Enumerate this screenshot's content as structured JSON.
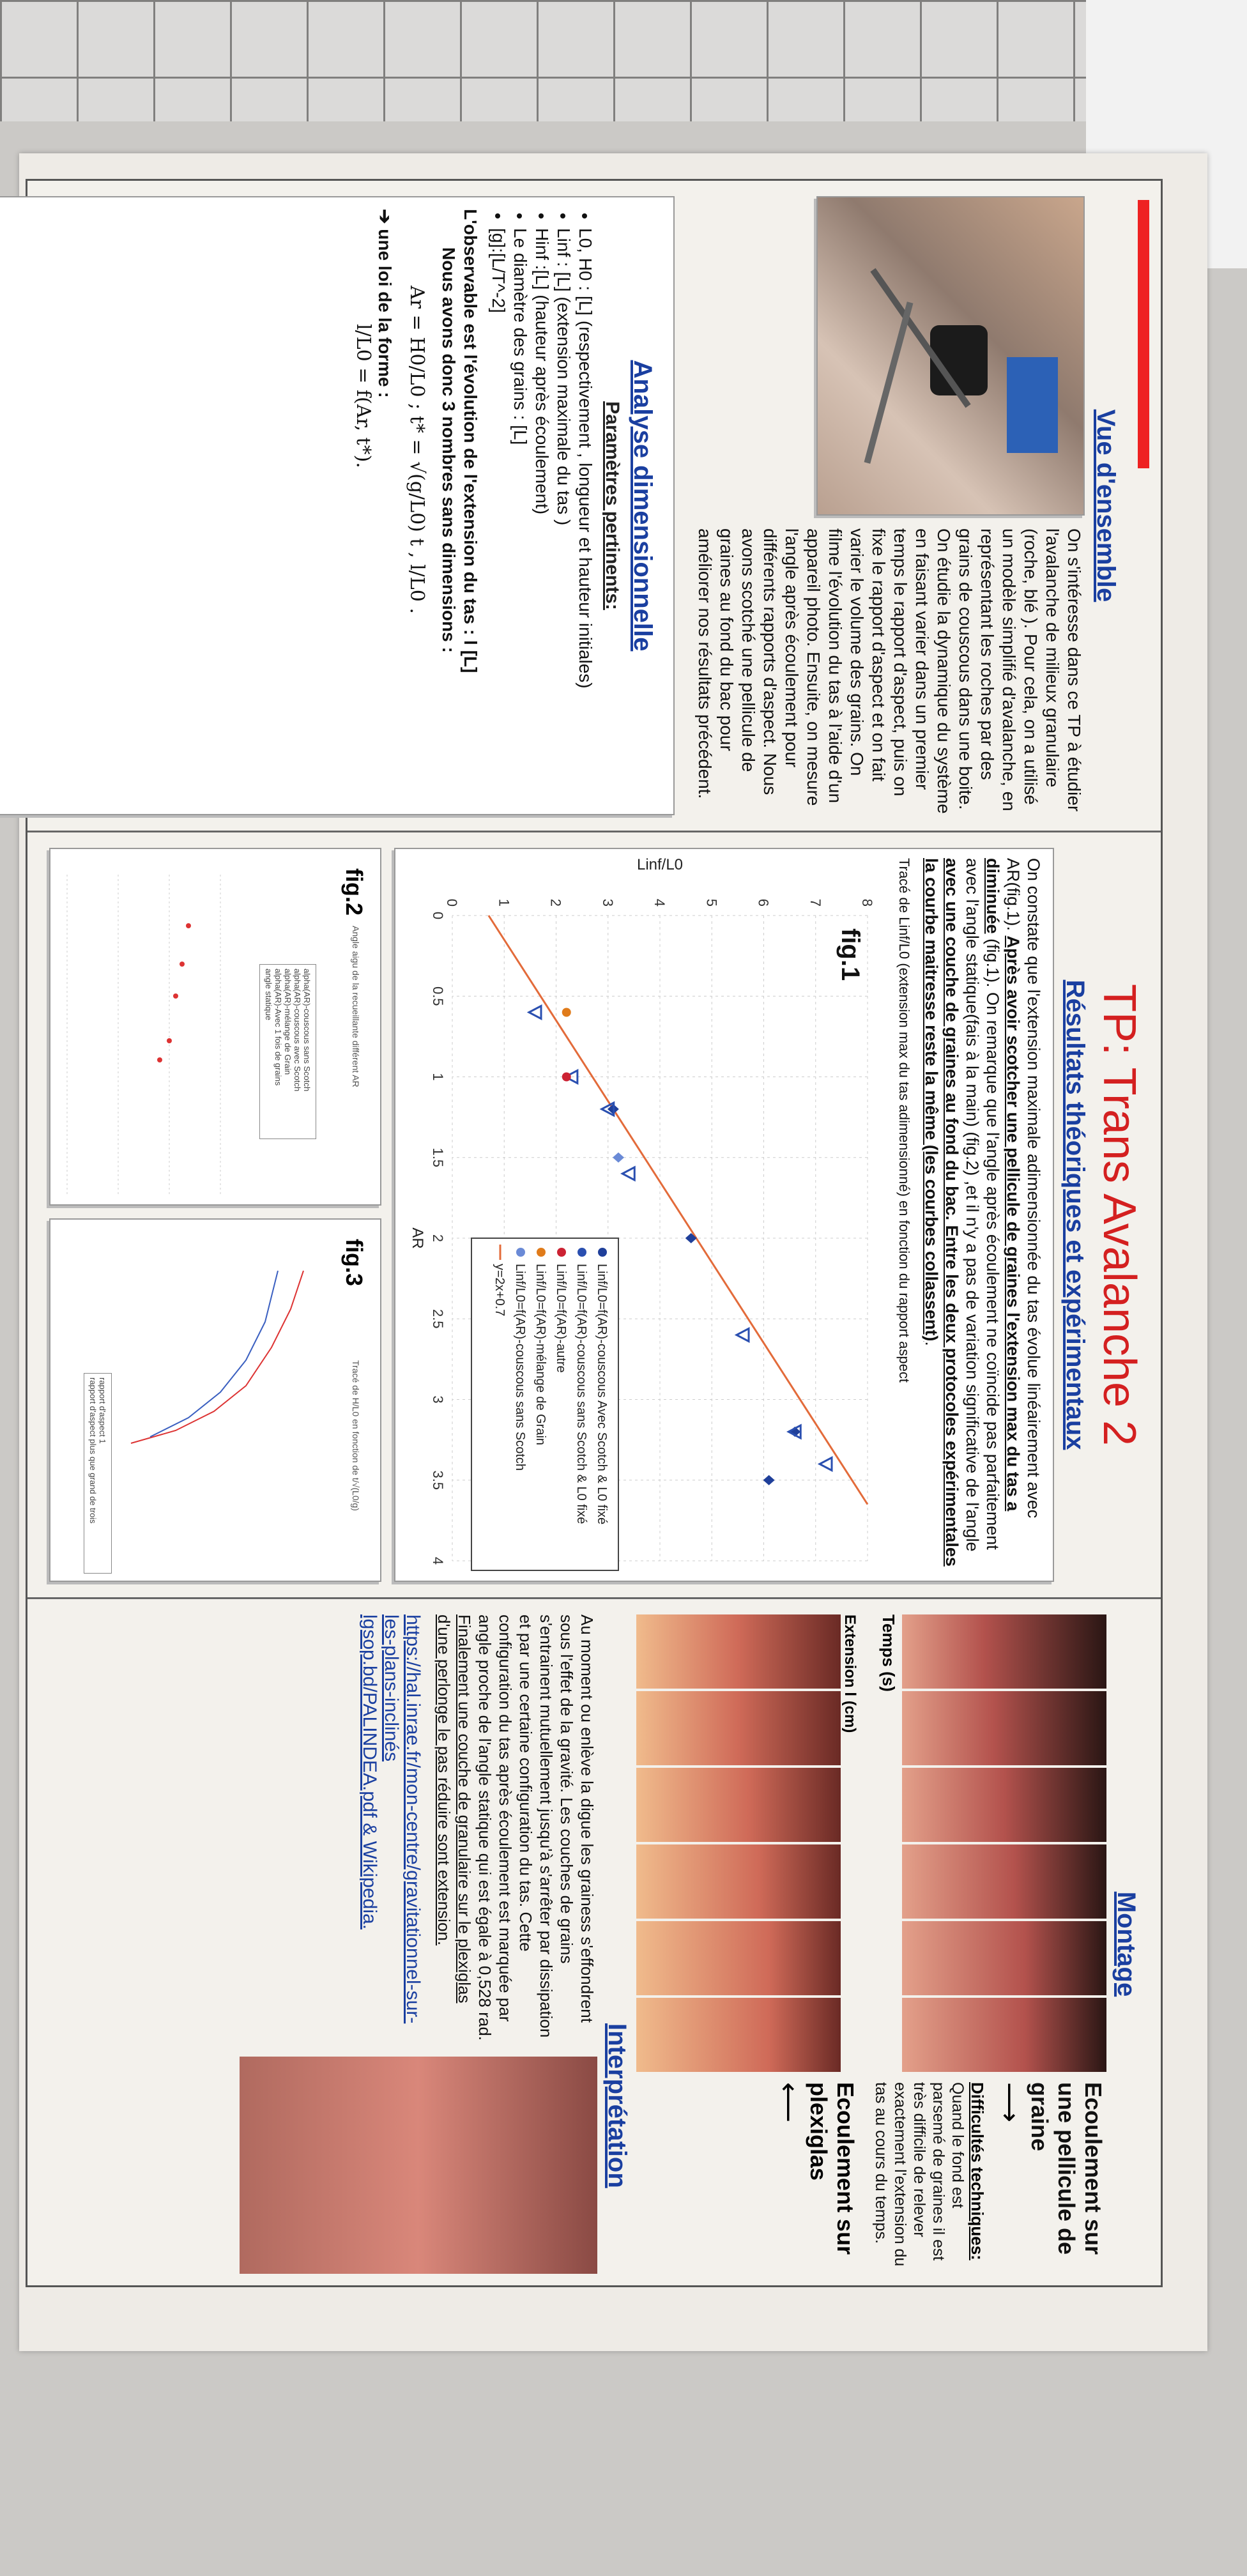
{
  "header": {
    "title": "TP: Trans Avalanche 2",
    "subtitle": "Résultats théoriques et expérimentaux"
  },
  "overview": {
    "heading": "Vue d'ensemble",
    "text": "On s'intéresse dans ce TP à étudier l'avalanche de milieux granulaire (roche, blé ). Pour cela, on a utilisé un modèle simplifié d'avalanche, en représentant les roches par des grains de couscous dans une boite. On étudie la dynamique du système en faisant varier dans un premier temps le rapport d'aspect, puis on fixe le rapport d'aspect et on fait varier le volume des grains. On filme l'évolution du tas à l'aide d'un appareil photo. Ensuite, on mesure l'angle après écoulement pour différents rapports d'aspect. Nous avons scotché une pellicule de graines au fond du bac pour améliorer nos résultats précédent."
  },
  "analysis": {
    "heading": "Analyse dimensionnelle",
    "params_heading": "Paramètres pertinents:",
    "params": [
      "L0, H0 : [L] (respectivement , longueur et hauteur initiales)",
      "Linf : [L] (extension maximale du tas )",
      "Hinf :[L] (hauteur après écoulement)",
      "Le diamètre des grains : [L]",
      "[g]:[L/T^-2]"
    ],
    "observable": "L'observable est l'évolution de l'extension du tas : l [L]",
    "dimensionless": "Nous avons donc 3 nombres sans dimensions :",
    "formula": "Ar = H0/L0 ; t* = √(g/L0) t , l/L0 .",
    "law_label": "une loi de la forme :",
    "law": "l/L0 = f(Ar, t*)."
  },
  "results": {
    "text_parts": [
      "On constate que l'extension maximale adimensionnée du tas évolue linéairement avec AR(fig.1). ",
      "Après avoir scotcher une pellicule de graines l'extension max du tas a diminuée",
      " (fig.1). On remarque que l'angle après écoulement ne coïncide pas parfaitement avec l'angle statique(fais à la main) (fig.2) ,et il n'y a pas de variation significative de l'angle ",
      "avec une couche de graines au fond du bac. Entre les deux protocoles expérimentales la courbe maitresse reste la même (les courbes collassent)",
      "."
    ],
    "fig1_caption": "Tracé de Linf/L0 (extension max du tas adimensionné) en fonction du rapport aspect",
    "fig2_label": "fig.2",
    "fig2_caption": "Angle aigu de la recueillante différent AR",
    "fig2_legend": [
      "alpha(AR)-couscous sans Scotch",
      "alpha(AR)-couscous avec Scotch",
      "alpha(AR)-mélange de Grain",
      "alpha(AR)-Avec 1 fois de grains",
      "angle statique"
    ],
    "fig3_label": "fig.3",
    "fig3_caption": "Tracé de H/L0 en fonction de t/√(L0/g)",
    "fig3_legend": [
      "rapport d'aspect 1",
      "rapport d'aspect plus que grand de trois"
    ]
  },
  "chart_data": {
    "type": "scatter",
    "title": "fig.1",
    "xlabel": "AR",
    "ylabel": "Linf/L0",
    "xlim": [
      0,
      4
    ],
    "ylim": [
      0,
      8
    ],
    "x_ticks": [
      "0",
      "0.5",
      "1",
      "1.5",
      "2",
      "2.5",
      "3",
      "3.5",
      "4"
    ],
    "y_ticks": [
      "0",
      "1",
      "2",
      "3",
      "4",
      "5",
      "6",
      "7",
      "8"
    ],
    "legend_position": "bottom-right",
    "grid": true,
    "series": [
      {
        "name": "Linf/L0=f(AR)-couscous Avec Scotch & L0 fixé",
        "color": "#1f3f9a",
        "marker": "diamond",
        "x": [
          1.2,
          2.0,
          3.2,
          3.5
        ],
        "y": [
          3.1,
          4.6,
          6.6,
          6.1
        ]
      },
      {
        "name": "Linf/L0=f(AR)-couscous sans Scotch & L0 fixé",
        "color": "#2a4fb0",
        "marker": "triangle",
        "x": [
          0.6,
          1.0,
          1.2,
          1.6,
          2.6,
          3.2,
          3.4
        ],
        "y": [
          1.6,
          2.3,
          3.0,
          3.4,
          5.6,
          6.6,
          7.2
        ]
      },
      {
        "name": "Linf/L0=f(AR)-autre",
        "color": "#c23",
        "marker": "dot",
        "x": [
          1.0
        ],
        "y": [
          2.2
        ]
      },
      {
        "name": "Linf/L0=f(AR)-mélange de Grain",
        "color": "#e07b1a",
        "marker": "dot",
        "x": [
          0.6
        ],
        "y": [
          2.2
        ]
      },
      {
        "name": "Linf/L0=f(AR)-couscous sans Scotch",
        "color": "#6a8ad6",
        "marker": "diamond",
        "x": [
          1.5
        ],
        "y": [
          3.2
        ]
      }
    ],
    "fit": {
      "label": "y=2x+0.7",
      "slope": 2,
      "intercept": 0.7,
      "color": "#e36b3a"
    }
  },
  "setup": {
    "heading": "Montage",
    "flow_label": "Ecoulement sur une pellicule de graine",
    "arrow": "⟶",
    "difficulties_heading": "Difficultés techniques:",
    "difficulties": "Quand le fond est parsemé de graines il est très difficile de relever exactement l'extension du tas au cours du temps.",
    "time_label": "Temps (s)",
    "extension_label": "Extension l (cm)",
    "flow2_label": "Ecoulement sur plexiglas",
    "arrow2": "⟵"
  },
  "interpretation": {
    "heading": "Interprétation",
    "text": "Au moment ou enlève la digue les grainess s'effondrent sous l'effet de la gravité. Les couches de grains s'entrainent mutuellement jusqu'à s'arrêter par dissipation et par une certaine configuration du tas. Cette configuration du tas après écoulement est marquée par angle proche de l'angle statique qui est égale à 0,528 rad.",
    "text_underlined": "Finalement une couche de granulaire sur le plexiglas d'une perlonge le pas réduire sont extension.",
    "links": [
      "https://hal.inrae.fr/mon-centre/gravitationnel-sur-les-plans-inclinés",
      "lgsop.bd/PALINDEA.pdf & Wikipedia."
    ]
  },
  "colors": {
    "title_red": "#d42020",
    "heading_blue": "#1a3fa0",
    "accent_red_bar": "#e22222"
  }
}
